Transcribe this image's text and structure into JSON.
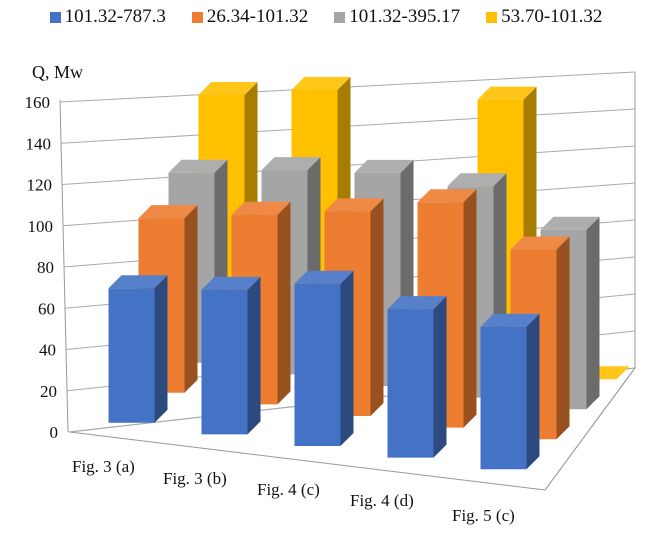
{
  "chart_data": {
    "type": "bar",
    "style": "3d-column",
    "ylabel": "Q, Mw",
    "ylim": [
      0,
      160
    ],
    "yticks": [
      0,
      20,
      40,
      60,
      80,
      100,
      120,
      140,
      160
    ],
    "grid": true,
    "legend_position": "top",
    "categories": [
      "Fig. 3 (a)",
      "Fig. 3 (b)",
      "Fig. 4 (c)",
      "Fig. 4 (d)",
      "Fig. 5 (c)"
    ],
    "series": [
      {
        "name": "101.32-787.3",
        "color": "#4472C4",
        "values": [
          68,
          73,
          82,
          75,
          72
        ]
      },
      {
        "name": "26.34-101.32",
        "color": "#ED7D31",
        "values": [
          93,
          101,
          109,
          120,
          101
        ]
      },
      {
        "name": "101.32-395.17",
        "color": "#A5A5A5",
        "values": [
          107,
          115,
          120,
          119,
          101
        ]
      },
      {
        "name": "53.70-101.32",
        "color": "#FFC000",
        "values": [
          142,
          152,
          0,
          160,
          0
        ]
      }
    ]
  }
}
